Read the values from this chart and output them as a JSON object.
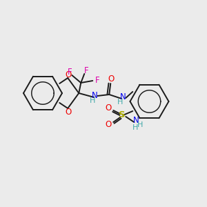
{
  "background_color": "#ebebeb",
  "atom_colors": {
    "C": "#1a1a1a",
    "N": "#0000ee",
    "O": "#ee0000",
    "F": "#dd00aa",
    "S": "#aaaa00",
    "H": "#44aaaa"
  },
  "bond_color": "#1a1a1a",
  "figsize": [
    3.0,
    3.0
  ],
  "dpi": 100
}
